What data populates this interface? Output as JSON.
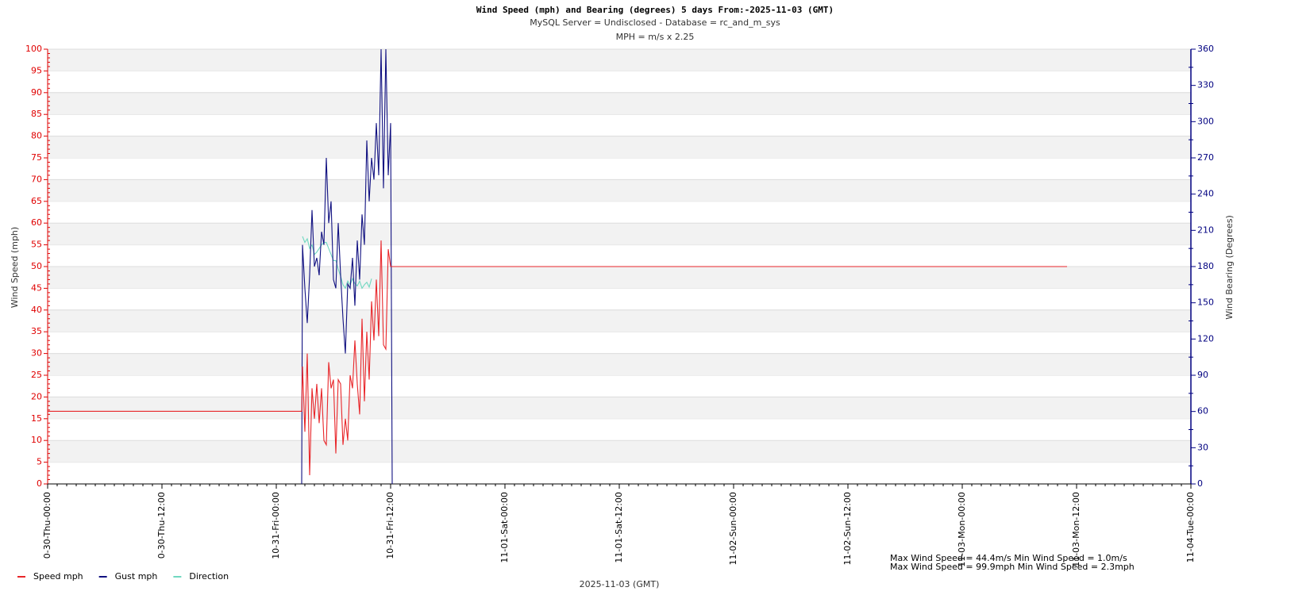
{
  "chart_data": {
    "type": "line",
    "title": "Wind Speed (mph) and Bearing (degrees) 5     days From:-2025-11-03 (GMT)",
    "subtitle": "MySQL Server = Undisclosed - Database = rc_and_m_sys",
    "note": "MPH = m/s x 2.25",
    "y_label": "Wind Speed (mph)",
    "y2_label": "Wind Bearing (Degrees)",
    "x_label": "2025-11-03 (GMT)",
    "annotations": [
      "Max Wind Speed = 44.4m/s Min Wind Speed = 1.0m/s",
      "Max Wind Speed = 99.9mph Min Wind Speed = 2.3mph"
    ],
    "xlim": [
      "10-30 00:00",
      "11-04 00:00"
    ],
    "xticks": [
      {
        "value": "10-30 00:00",
        "label": "0-30-Thu-00:00"
      },
      {
        "value": "10-30 12:00",
        "label": "0-30-Thu-12:00"
      },
      {
        "value": "10-31 00:00",
        "label": "10-31-Fri-00:00"
      },
      {
        "value": "10-31 12:00",
        "label": "10-31-Fri-12:00"
      },
      {
        "value": "11-01 00:00",
        "label": "11-01-Sat-00:00"
      },
      {
        "value": "11-01 12:00",
        "label": "11-01-Sat-12:00"
      },
      {
        "value": "11-02 00:00",
        "label": "11-02-Sun-00:00"
      },
      {
        "value": "11-02 12:00",
        "label": "11-02-Sun-12:00"
      },
      {
        "value": "11-03 00:00",
        "label": "11-03-Mon-00:00"
      },
      {
        "value": "11-03 12:00",
        "label": "11-03-Mon-12:00"
      },
      {
        "value": "11-04 00:00",
        "label": "11-04-Tue-00:00"
      }
    ],
    "ylim": [
      0,
      100
    ],
    "yticks": [
      0,
      5,
      10,
      15,
      20,
      25,
      30,
      35,
      40,
      45,
      50,
      55,
      60,
      65,
      70,
      75,
      80,
      85,
      90,
      95,
      100
    ],
    "y2lim": [
      0,
      360
    ],
    "y2ticks": [
      0,
      30,
      60,
      90,
      120,
      150,
      180,
      210,
      240,
      270,
      300,
      330,
      360
    ],
    "grid_bands": true,
    "y_color": "#e00000",
    "y2_color": "#000080",
    "legend": "bottom-left",
    "series": [
      {
        "name": "Speed mph",
        "color": "#e8262a",
        "x": [
          "10-30 00:00",
          "10-31 02:40",
          "10-31 02:45",
          "10-31 03:00",
          "10-31 03:15",
          "10-31 03:30",
          "10-31 03:45",
          "10-31 04:00",
          "10-31 04:15",
          "10-31 04:30",
          "10-31 04:45",
          "10-31 05:00",
          "10-31 05:15",
          "10-31 05:30",
          "10-31 05:45",
          "10-31 06:00",
          "10-31 06:15",
          "10-31 06:30",
          "10-31 06:45",
          "10-31 07:00",
          "10-31 07:15",
          "10-31 07:30",
          "10-31 07:45",
          "10-31 08:00",
          "10-31 08:15",
          "10-31 08:30",
          "10-31 08:45",
          "10-31 09:00",
          "10-31 09:15",
          "10-31 09:30",
          "10-31 09:45",
          "10-31 10:00",
          "10-31 10:15",
          "10-31 10:30",
          "10-31 10:45",
          "10-31 11:00",
          "10-31 11:15",
          "10-31 11:30",
          "10-31 11:45",
          "10-31 12:00",
          "11-03 11:00"
        ],
        "values": [
          16.7,
          16.7,
          27,
          12,
          30,
          2,
          22,
          15,
          23,
          14,
          22,
          10,
          9,
          28,
          22,
          24,
          7,
          24,
          23,
          9,
          15,
          10,
          25,
          22,
          33,
          23,
          16,
          38,
          19,
          35,
          24,
          42,
          33,
          47,
          34,
          56,
          32,
          31,
          54,
          50,
          50
        ]
      },
      {
        "name": "Gust mph",
        "color": "#101080",
        "x": [
          "10-31 02:40",
          "10-31 02:45",
          "10-31 03:00",
          "10-31 03:15",
          "10-31 03:30",
          "10-31 03:45",
          "10-31 04:00",
          "10-31 04:15",
          "10-31 04:30",
          "10-31 04:45",
          "10-31 05:00",
          "10-31 05:15",
          "10-31 05:30",
          "10-31 05:45",
          "10-31 06:00",
          "10-31 06:15",
          "10-31 06:30",
          "10-31 06:45",
          "10-31 07:00",
          "10-31 07:15",
          "10-31 07:30",
          "10-31 07:45",
          "10-31 08:00",
          "10-31 08:15",
          "10-31 08:30",
          "10-31 08:45",
          "10-31 09:00",
          "10-31 09:15",
          "10-31 09:30",
          "10-31 09:45",
          "10-31 10:00",
          "10-31 10:15",
          "10-31 10:30",
          "10-31 10:45",
          "10-31 11:00",
          "10-31 11:15",
          "10-31 11:30",
          "10-31 11:45",
          "10-31 12:00",
          "10-31 12:10"
        ],
        "values": [
          0,
          55,
          45,
          37,
          48,
          63,
          50,
          52,
          48,
          58,
          55,
          75,
          60,
          65,
          47,
          45,
          60,
          48,
          38,
          30,
          46,
          45,
          52,
          41,
          56,
          47,
          62,
          55,
          79,
          65,
          75,
          70,
          83,
          71,
          100,
          68,
          100,
          71,
          83,
          0
        ]
      },
      {
        "name": "Direction",
        "color": "#70d8c0",
        "axis": "y2",
        "x": [
          "10-31 02:45",
          "10-31 03:00",
          "10-31 03:15",
          "10-31 03:30",
          "10-31 03:45",
          "10-31 04:00",
          "10-31 04:15",
          "10-31 04:30",
          "10-31 04:45",
          "10-31 05:00",
          "10-31 05:15",
          "10-31 05:30",
          "10-31 05:45",
          "10-31 06:00",
          "10-31 06:15",
          "10-31 06:30",
          "10-31 06:45",
          "10-31 07:00",
          "10-31 07:15",
          "10-31 07:30",
          "10-31 07:45",
          "10-31 08:00",
          "10-31 08:15",
          "10-31 08:30",
          "10-31 08:45",
          "10-31 09:00",
          "10-31 09:15",
          "10-31 09:30",
          "10-31 09:45",
          "10-31 10:00"
        ],
        "values": [
          205,
          200,
          203,
          195,
          198,
          190,
          192,
          195,
          198,
          200,
          200,
          195,
          190,
          185,
          185,
          178,
          172,
          165,
          162,
          168,
          165,
          170,
          166,
          164,
          168,
          162,
          165,
          167,
          163,
          170
        ]
      }
    ]
  }
}
